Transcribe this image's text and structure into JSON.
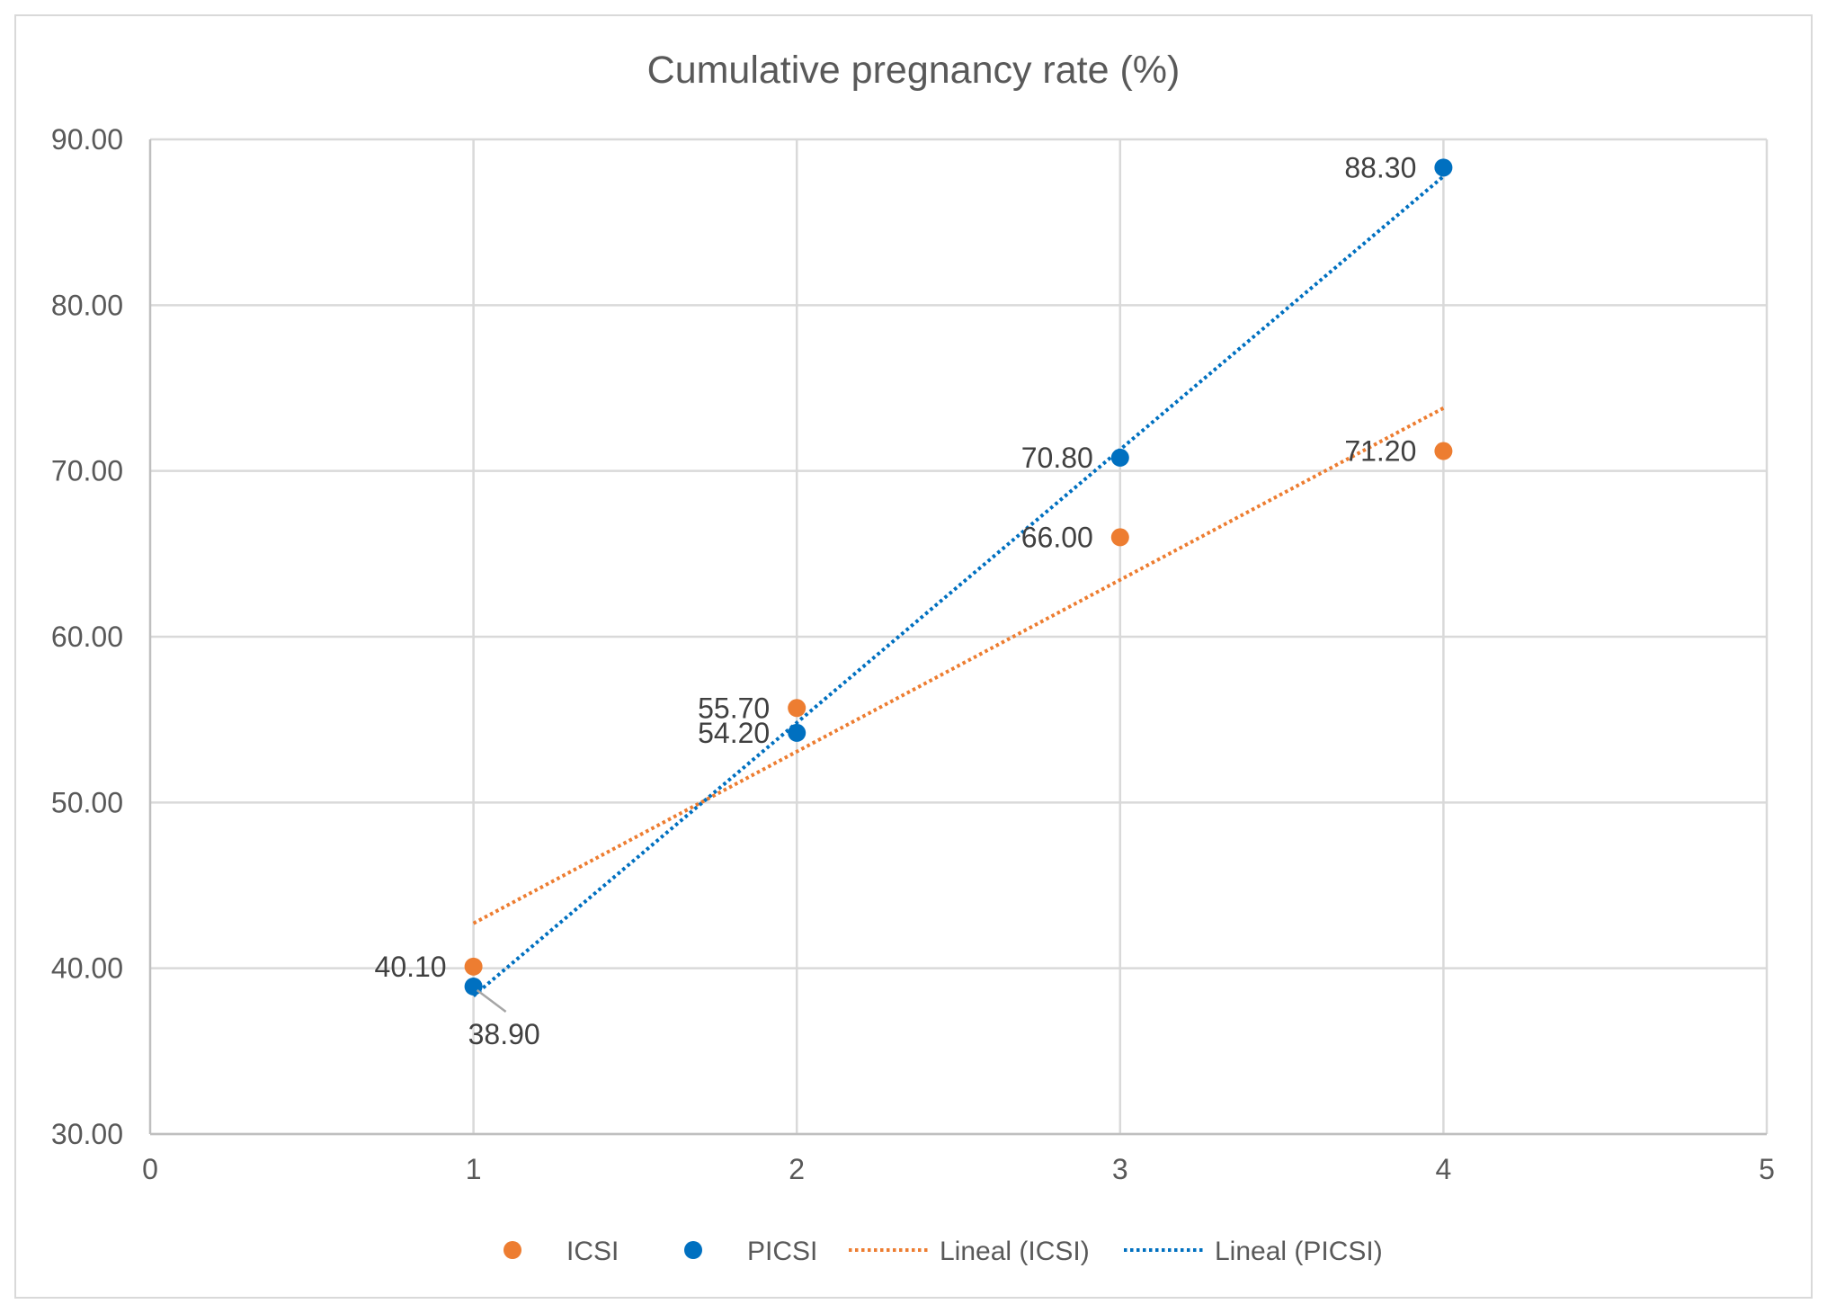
{
  "chart_data": {
    "type": "scatter",
    "title": "Cumulative pregnancy rate (%)",
    "xlabel": "",
    "ylabel": "",
    "xlim": [
      0,
      5
    ],
    "ylim": [
      30,
      90
    ],
    "x_ticks": [
      "0",
      "1",
      "2",
      "3",
      "4",
      "5"
    ],
    "y_ticks": [
      "30.00",
      "40.00",
      "50.00",
      "60.00",
      "70.00",
      "80.00",
      "90.00"
    ],
    "grid": true,
    "legend_position": "bottom",
    "series": [
      {
        "name": "ICSI",
        "color": "#ED7D31",
        "x": [
          1,
          2,
          3,
          4
        ],
        "values": [
          40.1,
          55.7,
          66.0,
          71.2
        ],
        "labels": [
          "40.10",
          "55.70",
          "66.00",
          "71.20"
        ]
      },
      {
        "name": "PICSI",
        "color": "#0070C0",
        "x": [
          1,
          2,
          3,
          4
        ],
        "values": [
          38.9,
          54.2,
          70.8,
          88.3
        ],
        "labels": [
          "38.90",
          "54.20",
          "70.80",
          "88.30"
        ]
      }
    ],
    "trendlines": [
      {
        "name": "Lineal (ICSI)",
        "series": "ICSI",
        "color": "#ED7D31",
        "style": "dotted"
      },
      {
        "name": "Lineal (PICSI)",
        "series": "PICSI",
        "color": "#0070C0",
        "style": "dotted"
      }
    ]
  }
}
